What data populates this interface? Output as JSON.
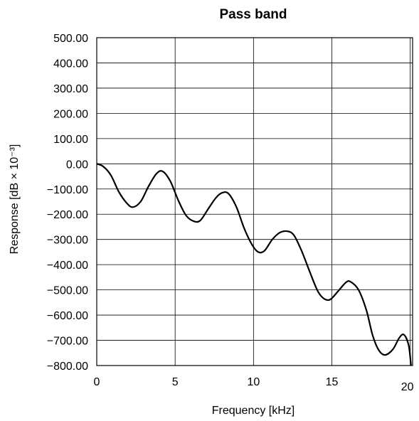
{
  "chart_data": {
    "type": "line",
    "title": "Pass band",
    "xlabel": "Frequency [kHz]",
    "ylabel": "Response [dB × 10⁻³]",
    "xlim": [
      0,
      20.15
    ],
    "ylim": [
      -800,
      500
    ],
    "x_ticks": [
      0,
      5,
      10,
      15,
      20
    ],
    "x_tick_labels": [
      "0",
      "5",
      "10",
      "15",
      "20"
    ],
    "y_ticks": [
      500,
      400,
      300,
      200,
      100,
      0,
      -100,
      -200,
      -300,
      -400,
      -500,
      -600,
      -700,
      -800
    ],
    "y_tick_labels": [
      "500.00",
      "400.00",
      "300.00",
      "200.00",
      "100.00",
      "0.00",
      "−100.00",
      "−200.00",
      "−300.00",
      "−400.00",
      "−500.00",
      "−600.00",
      "−700.00",
      "−800.00"
    ],
    "grid": true,
    "series": [
      {
        "color": "#000000",
        "x": [
          0,
          0.4,
          0.9,
          1.4,
          1.9,
          2.3,
          2.8,
          3.3,
          3.8,
          4.2,
          4.7,
          5.2,
          5.7,
          6.2,
          6.6,
          7.1,
          7.6,
          8.0,
          8.4,
          8.9,
          9.4,
          9.9,
          10.3,
          10.7,
          11.2,
          11.7,
          12.2,
          12.6,
          13.1,
          13.6,
          14.1,
          14.5,
          14.9,
          15.4,
          15.9,
          16.2,
          16.7,
          17.2,
          17.6,
          18.0,
          18.4,
          18.9,
          19.3,
          19.6,
          19.9,
          20.05
        ],
        "values": [
          0,
          -10,
          -45,
          -110,
          -155,
          -172,
          -150,
          -90,
          -40,
          -30,
          -70,
          -145,
          -205,
          -228,
          -225,
          -180,
          -135,
          -115,
          -118,
          -170,
          -255,
          -320,
          -350,
          -345,
          -300,
          -272,
          -268,
          -285,
          -350,
          -430,
          -505,
          -535,
          -538,
          -505,
          -470,
          -468,
          -500,
          -580,
          -680,
          -740,
          -758,
          -735,
          -690,
          -678,
          -720,
          -800
        ]
      }
    ]
  }
}
